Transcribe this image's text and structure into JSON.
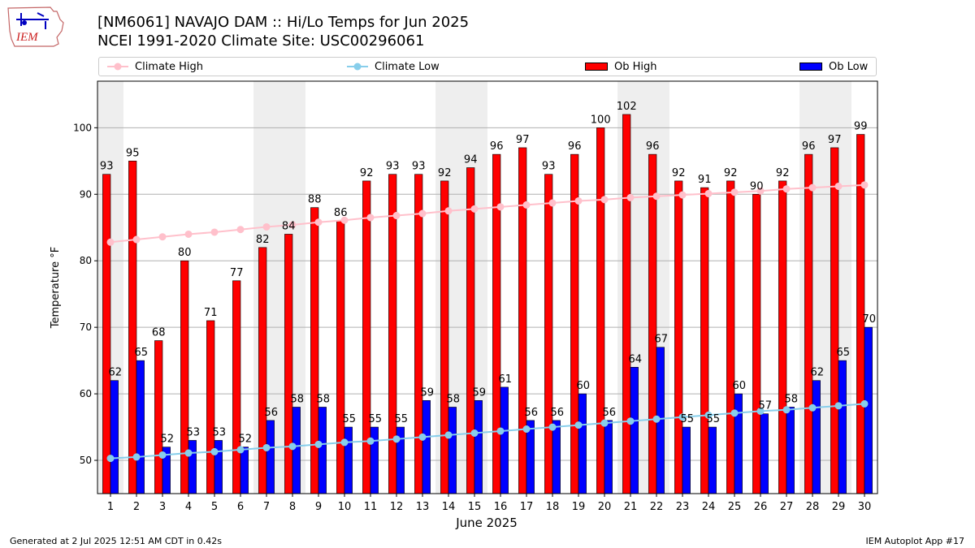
{
  "logo": {
    "text": "IEM"
  },
  "header": {
    "title_line1": "[NM6061] NAVAJO DAM :: Hi/Lo Temps for Jun 2025",
    "title_line2": "NCEI 1991-2020 Climate Site: USC00296061"
  },
  "legend": {
    "climate_high": "Climate High",
    "climate_low": "Climate Low",
    "ob_high": "Ob High",
    "ob_low": "Ob Low"
  },
  "colors": {
    "ob_high": "#ff0000",
    "ob_low": "#0000ff",
    "climate_high": "#ffc0cb",
    "climate_low": "#87ceeb",
    "weekend_shade": "#eeeeee"
  },
  "footer": {
    "generated": "Generated at 2 Jul 2025 12:51 AM CDT in 0.42s",
    "app": "IEM Autoplot App #17"
  },
  "chart_data": {
    "type": "bar",
    "xlabel": "June 2025",
    "ylabel": "Temperature °F",
    "ylim": [
      45,
      107
    ],
    "yticks": [
      50,
      60,
      70,
      80,
      90,
      100
    ],
    "grid": "horizontal",
    "legend_position": "top",
    "categories": [
      "1",
      "2",
      "3",
      "4",
      "5",
      "6",
      "7",
      "8",
      "9",
      "10",
      "11",
      "12",
      "13",
      "14",
      "15",
      "16",
      "17",
      "18",
      "19",
      "20",
      "21",
      "22",
      "23",
      "24",
      "25",
      "26",
      "27",
      "28",
      "29",
      "30"
    ],
    "shaded_days": [
      1,
      7,
      8,
      14,
      15,
      21,
      22,
      28,
      29
    ],
    "series": [
      {
        "name": "Ob High",
        "kind": "bar",
        "values": [
          93,
          95,
          68,
          80,
          71,
          77,
          82,
          84,
          88,
          86,
          92,
          93,
          93,
          92,
          94,
          96,
          97,
          93,
          96,
          100,
          102,
          96,
          92,
          91,
          92,
          90,
          92,
          96,
          97,
          99
        ]
      },
      {
        "name": "Ob Low",
        "kind": "bar",
        "values": [
          62,
          65,
          52,
          53,
          53,
          52,
          56,
          58,
          58,
          55,
          55,
          55,
          59,
          58,
          59,
          61,
          56,
          56,
          60,
          56,
          64,
          67,
          55,
          55,
          60,
          57,
          58,
          62,
          65,
          70
        ]
      },
      {
        "name": "Climate High",
        "kind": "line",
        "values": [
          82.8,
          83.2,
          83.6,
          84.0,
          84.3,
          84.7,
          85.1,
          85.4,
          85.8,
          86.1,
          86.5,
          86.8,
          87.1,
          87.5,
          87.8,
          88.1,
          88.4,
          88.7,
          89.0,
          89.2,
          89.5,
          89.7,
          89.9,
          90.1,
          90.3,
          90.5,
          90.8,
          91.0,
          91.2,
          91.4
        ]
      },
      {
        "name": "Climate Low",
        "kind": "line",
        "values": [
          50.3,
          50.5,
          50.8,
          51.1,
          51.3,
          51.6,
          51.9,
          52.1,
          52.4,
          52.7,
          52.9,
          53.2,
          53.5,
          53.8,
          54.1,
          54.4,
          54.7,
          55.0,
          55.3,
          55.6,
          55.9,
          56.2,
          56.5,
          56.8,
          57.1,
          57.4,
          57.6,
          57.9,
          58.2,
          58.5
        ]
      }
    ]
  }
}
